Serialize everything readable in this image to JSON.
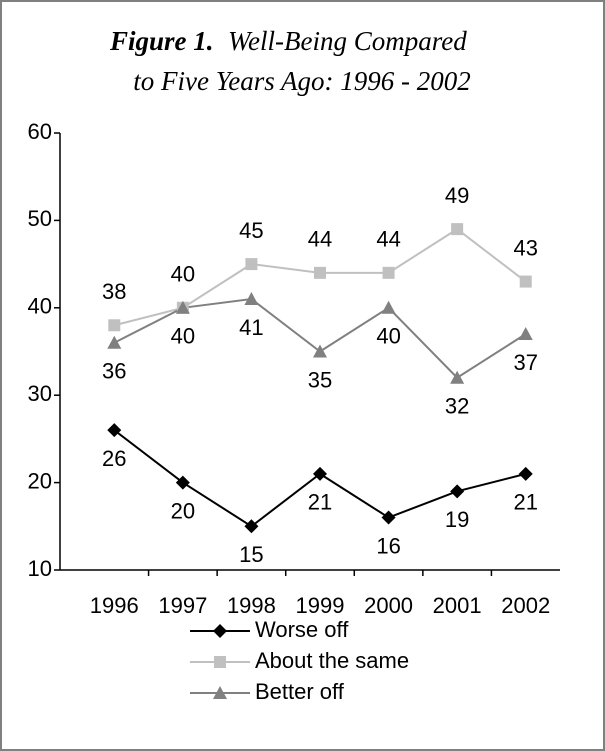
{
  "chart_data": {
    "type": "line",
    "title_prefix": "Figure 1.",
    "title_lines": [
      "Well-Being Compared",
      "to Five Years Ago:  1996 - 2002"
    ],
    "categories": [
      "1996",
      "1997",
      "1998",
      "1999",
      "2000",
      "2001",
      "2002"
    ],
    "series": [
      {
        "name": "Worse off",
        "color": "#000000",
        "marker": "diamond",
        "label_position": "below",
        "values": [
          26,
          20,
          15,
          21,
          16,
          19,
          21
        ]
      },
      {
        "name": "About the same",
        "color": "#c0c0c0",
        "marker": "square",
        "label_position": "above",
        "values": [
          38,
          40,
          45,
          44,
          44,
          49,
          43
        ]
      },
      {
        "name": "Better off",
        "color": "#808080",
        "marker": "triangle",
        "label_position": "below",
        "values": [
          36,
          40,
          41,
          35,
          40,
          32,
          37
        ]
      }
    ],
    "ylim": [
      10,
      60
    ],
    "yticks": [
      10,
      20,
      30,
      40,
      50,
      60
    ],
    "grid": false
  }
}
